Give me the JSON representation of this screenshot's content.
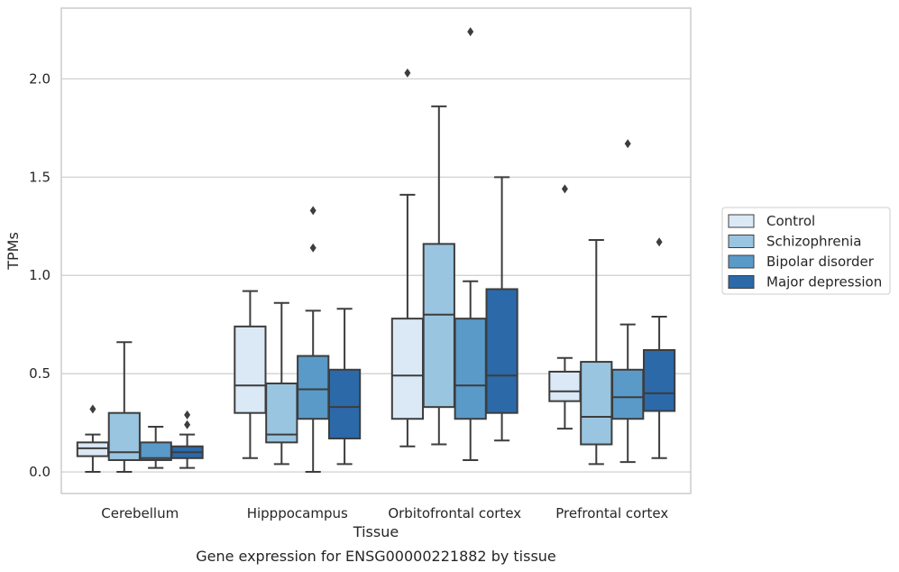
{
  "chart_data": {
    "type": "box",
    "title": "Gene expression for ENSG00000221882 by tissue",
    "xlabel": "Tissue",
    "ylabel": "TPMs",
    "ylim": [
      -0.11,
      2.36
    ],
    "yticks": [
      0.0,
      0.5,
      1.0,
      1.5,
      2.0
    ],
    "ytick_labels": [
      "0.0",
      "0.5",
      "1.0",
      "1.5",
      "2.0"
    ],
    "grid": "horizontal",
    "legend_position": "right",
    "categories": [
      "Cerebellum",
      "Hipppocampus",
      "Orbitofrontal cortex",
      "Prefrontal cortex"
    ],
    "series": [
      {
        "name": "Control",
        "color": "#dbe9f6",
        "boxes": [
          {
            "whisker_low": 0.0,
            "q1": 0.08,
            "median": 0.12,
            "q3": 0.15,
            "whisker_high": 0.19,
            "outliers": [
              0.32
            ]
          },
          {
            "whisker_low": 0.07,
            "q1": 0.3,
            "median": 0.44,
            "q3": 0.74,
            "whisker_high": 0.92,
            "outliers": []
          },
          {
            "whisker_low": 0.13,
            "q1": 0.27,
            "median": 0.49,
            "q3": 0.78,
            "whisker_high": 1.41,
            "outliers": [
              2.03
            ]
          },
          {
            "whisker_low": 0.22,
            "q1": 0.36,
            "median": 0.41,
            "q3": 0.51,
            "whisker_high": 0.58,
            "outliers": [
              1.44
            ]
          }
        ]
      },
      {
        "name": "Schizophrenia",
        "color": "#9ac5e0",
        "boxes": [
          {
            "whisker_low": 0.0,
            "q1": 0.06,
            "median": 0.1,
            "q3": 0.3,
            "whisker_high": 0.66,
            "outliers": []
          },
          {
            "whisker_low": 0.04,
            "q1": 0.15,
            "median": 0.19,
            "q3": 0.45,
            "whisker_high": 0.86,
            "outliers": []
          },
          {
            "whisker_low": 0.14,
            "q1": 0.33,
            "median": 0.8,
            "q3": 1.16,
            "whisker_high": 1.86,
            "outliers": []
          },
          {
            "whisker_low": 0.04,
            "q1": 0.14,
            "median": 0.28,
            "q3": 0.56,
            "whisker_high": 1.18,
            "outliers": []
          }
        ]
      },
      {
        "name": "Bipolar disorder",
        "color": "#5a9ac8",
        "boxes": [
          {
            "whisker_low": 0.02,
            "q1": 0.06,
            "median": 0.07,
            "q3": 0.15,
            "whisker_high": 0.23,
            "outliers": []
          },
          {
            "whisker_low": 0.0,
            "q1": 0.27,
            "median": 0.42,
            "q3": 0.59,
            "whisker_high": 0.82,
            "outliers": [
              1.14,
              1.33
            ]
          },
          {
            "whisker_low": 0.06,
            "q1": 0.27,
            "median": 0.44,
            "q3": 0.78,
            "whisker_high": 0.97,
            "outliers": [
              2.24
            ]
          },
          {
            "whisker_low": 0.05,
            "q1": 0.27,
            "median": 0.38,
            "q3": 0.52,
            "whisker_high": 0.75,
            "outliers": [
              1.67
            ]
          }
        ]
      },
      {
        "name": "Major depression",
        "color": "#2b69a9",
        "boxes": [
          {
            "whisker_low": 0.02,
            "q1": 0.07,
            "median": 0.1,
            "q3": 0.13,
            "whisker_high": 0.19,
            "outliers": [
              0.24,
              0.29
            ]
          },
          {
            "whisker_low": 0.04,
            "q1": 0.17,
            "median": 0.33,
            "q3": 0.52,
            "whisker_high": 0.83,
            "outliers": []
          },
          {
            "whisker_low": 0.16,
            "q1": 0.3,
            "median": 0.49,
            "q3": 0.93,
            "whisker_high": 1.5,
            "outliers": []
          },
          {
            "whisker_low": 0.07,
            "q1": 0.31,
            "median": 0.4,
            "q3": 0.62,
            "whisker_high": 0.79,
            "outliers": [
              1.17
            ]
          }
        ]
      }
    ]
  }
}
